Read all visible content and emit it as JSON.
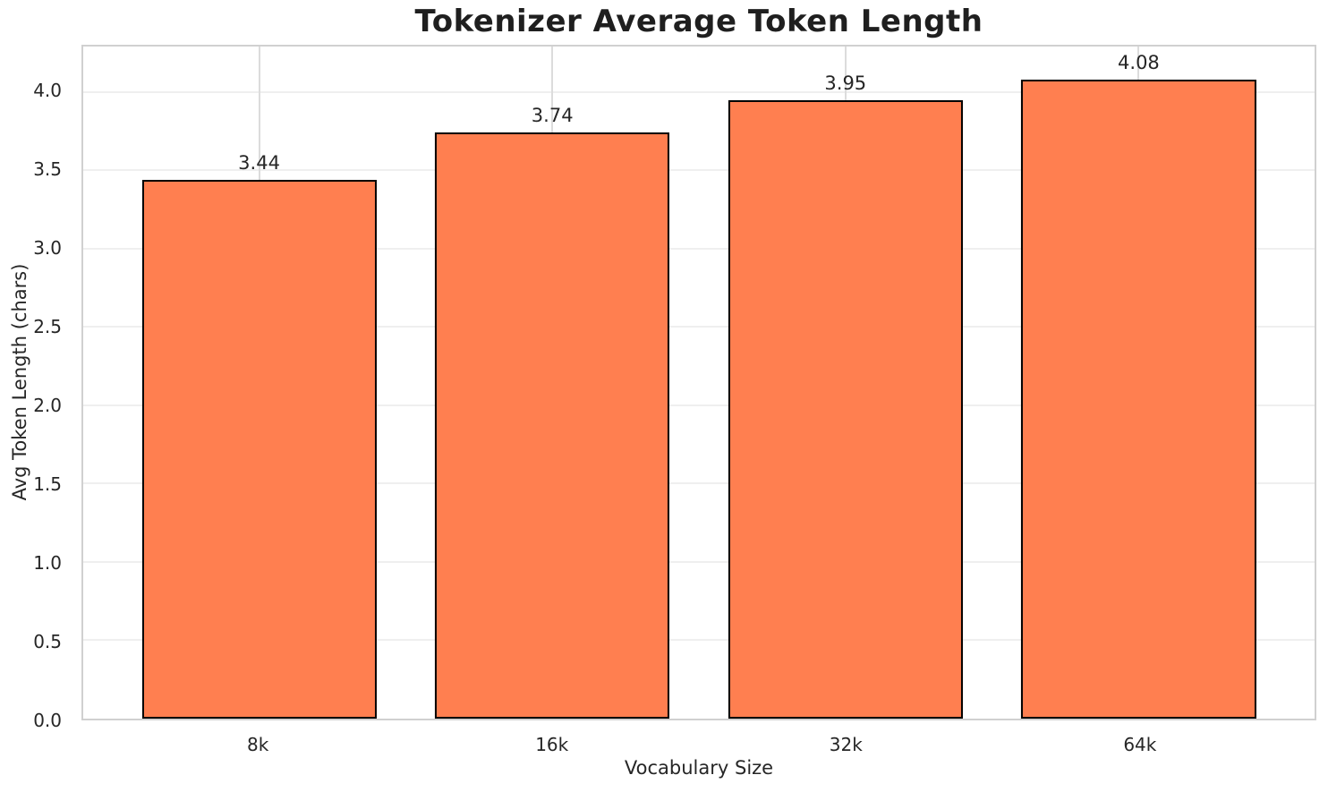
{
  "chart_data": {
    "type": "bar",
    "title": "Tokenizer Average Token Length",
    "xlabel": "Vocabulary Size",
    "ylabel": "Avg Token Length (chars)",
    "categories": [
      "8k",
      "16k",
      "32k",
      "64k"
    ],
    "values": [
      3.44,
      3.74,
      3.95,
      4.08
    ],
    "value_labels": [
      "3.44",
      "3.74",
      "3.95",
      "4.08"
    ],
    "y_ticks": [
      0.0,
      0.5,
      1.0,
      1.5,
      2.0,
      2.5,
      3.0,
      3.5,
      4.0
    ],
    "y_tick_labels": [
      "0.0",
      "0.5",
      "1.0",
      "1.5",
      "2.0",
      "2.5",
      "3.0",
      "3.5",
      "4.0"
    ],
    "ylim": [
      0,
      4.29
    ],
    "xlim": [
      -0.6,
      3.6
    ],
    "bar_width": 0.8,
    "grid": true,
    "legend_position": "none",
    "colors": {
      "bar_fill": "#FF7F50",
      "bar_edge": "#000000",
      "grid_horizontal": "#efefef",
      "grid_vertical": "#dcdcdc",
      "spine": "#d0d0d0",
      "text": "#262626",
      "title_text": "#1f1f1f",
      "background": "#ffffff"
    }
  }
}
